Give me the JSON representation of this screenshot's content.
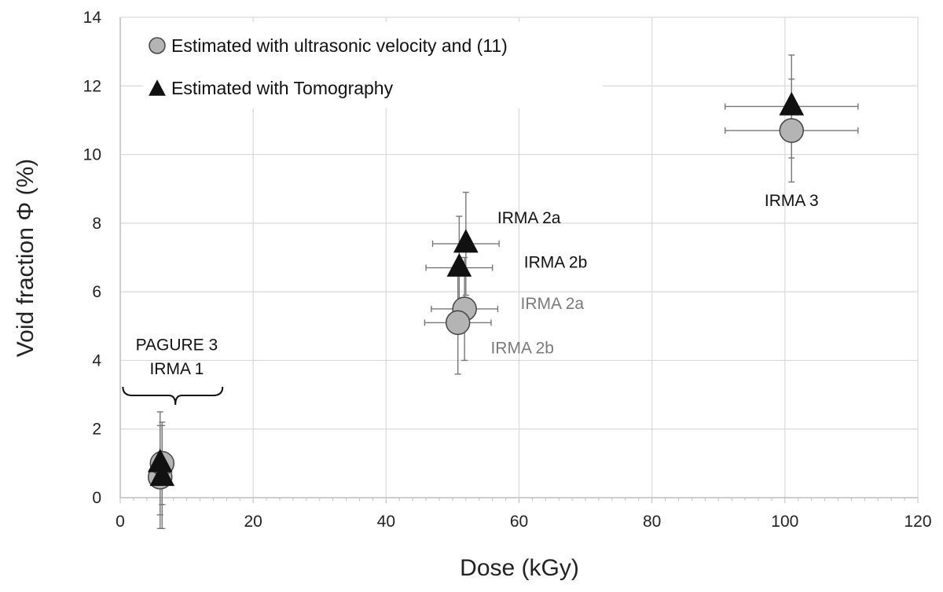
{
  "chart_data": {
    "type": "scatter",
    "xlabel": "Dose (kGy)",
    "ylabel": "Void fraction Φ (%)",
    "xlim": [
      0,
      120
    ],
    "ylim": [
      0,
      14
    ],
    "x_ticks": [
      "0",
      "20",
      "40",
      "60",
      "80",
      "100",
      "120"
    ],
    "y_ticks": [
      "0",
      "2",
      "4",
      "6",
      "8",
      "10",
      "12",
      "14"
    ],
    "grid": true,
    "legend_position": "top-left",
    "series": [
      {
        "name": "Estimated with ultrasonic velocity and (11)",
        "marker": "circle",
        "color": "#b4b4b4",
        "points": [
          {
            "x": 6,
            "y": 0.6,
            "xerr": 0,
            "yerr": 1.5
          },
          {
            "x": 6.3,
            "y": 1.0,
            "xerr": 0,
            "yerr": 1.2
          },
          {
            "x": 51.8,
            "y": 5.5,
            "xerr": 5,
            "yerr": 1.5
          },
          {
            "x": 50.8,
            "y": 5.1,
            "xerr": 5,
            "yerr": 1.5
          },
          {
            "x": 101,
            "y": 10.7,
            "xerr": 10,
            "yerr": 1.5
          }
        ]
      },
      {
        "name": "Estimated with Tomography",
        "marker": "triangle",
        "color": "#111111",
        "points": [
          {
            "x": 6,
            "y": 1.0,
            "xerr": 0,
            "yerr": 1.5
          },
          {
            "x": 6.3,
            "y": 0.6,
            "xerr": 0,
            "yerr": 1.5
          },
          {
            "x": 52,
            "y": 7.4,
            "xerr": 5,
            "yerr": 1.5
          },
          {
            "x": 51,
            "y": 6.7,
            "xerr": 5,
            "yerr": 1.5
          },
          {
            "x": 101,
            "y": 11.4,
            "xerr": 10,
            "yerr": 1.5
          }
        ]
      }
    ],
    "annotations": [
      {
        "text": "PAGURE 3",
        "x": 8.5,
        "y": 4.3,
        "color": "#111111"
      },
      {
        "text": "IRMA 1",
        "x": 8.5,
        "y": 3.6,
        "color": "#111111"
      },
      {
        "text": "IRMA 2a",
        "x": 61.5,
        "y": 8.0,
        "color": "#111111"
      },
      {
        "text": "IRMA 2b",
        "x": 65.5,
        "y": 6.7,
        "color": "#111111"
      },
      {
        "text": "IRMA 2a",
        "x": 65,
        "y": 5.5,
        "color": "#7a7a7a"
      },
      {
        "text": "IRMA 2b",
        "x": 60.5,
        "y": 4.2,
        "color": "#7a7a7a"
      },
      {
        "text": "IRMA 3",
        "x": 101,
        "y": 8.5,
        "color": "#111111"
      }
    ]
  }
}
